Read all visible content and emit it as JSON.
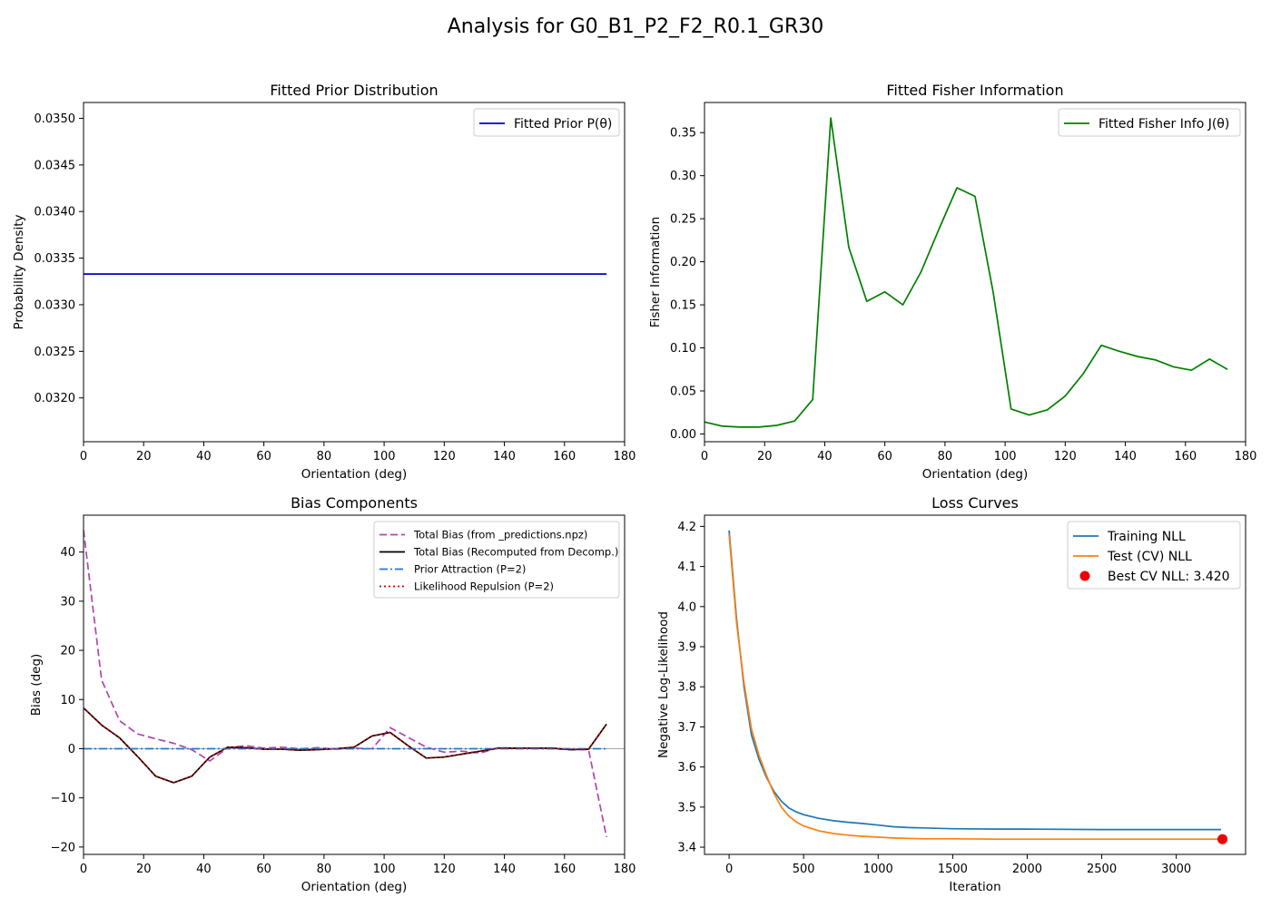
{
  "figure": {
    "title": "Analysis for G0_B1_P2_F2_R0.1_GR30"
  },
  "chart_data": [
    {
      "id": "prior",
      "type": "line",
      "title": "Fitted Prior Distribution",
      "xlabel": "Orientation (deg)",
      "ylabel": "Probability Density",
      "xlim": [
        0,
        180
      ],
      "ylim": [
        0.03153,
        0.03517
      ],
      "xticks": [
        0,
        20,
        40,
        60,
        80,
        100,
        120,
        140,
        160,
        180
      ],
      "yticks": [
        0.032,
        0.0325,
        0.033,
        0.0335,
        0.034,
        0.0345,
        0.035
      ],
      "yticklabels": [
        "0.0320",
        "0.0325",
        "0.0330",
        "0.0335",
        "0.0340",
        "0.0345",
        "0.0350"
      ],
      "grid": false,
      "legend": "top-right",
      "series": [
        {
          "name": "Fitted Prior P(θ)",
          "color": "#0000cc",
          "style": "solid",
          "x": [
            0,
            174
          ],
          "y": [
            0.03333,
            0.03333
          ]
        }
      ]
    },
    {
      "id": "fisher",
      "type": "line",
      "title": "Fitted Fisher Information",
      "xlabel": "Orientation (deg)",
      "ylabel": "Fisher Information",
      "xlim": [
        0,
        180
      ],
      "ylim": [
        -0.009,
        0.385
      ],
      "xticks": [
        0,
        20,
        40,
        60,
        80,
        100,
        120,
        140,
        160,
        180
      ],
      "yticks": [
        0,
        0.05,
        0.1,
        0.15,
        0.2,
        0.25,
        0.3,
        0.35
      ],
      "yticklabels": [
        "0.00",
        "0.05",
        "0.10",
        "0.15",
        "0.20",
        "0.25",
        "0.30",
        "0.35"
      ],
      "grid": false,
      "legend": "top-right",
      "series": [
        {
          "name": "Fitted Fisher Info J(θ)",
          "color": "#008000",
          "style": "solid",
          "x": [
            0,
            6,
            12,
            18,
            24,
            30,
            36,
            42,
            48,
            54,
            60,
            66,
            72,
            78,
            84,
            90,
            96,
            102,
            108,
            114,
            120,
            126,
            132,
            138,
            144,
            150,
            156,
            162,
            168,
            174
          ],
          "y": [
            0.014,
            0.009,
            0.008,
            0.008,
            0.01,
            0.015,
            0.04,
            0.367,
            0.217,
            0.154,
            0.165,
            0.15,
            0.188,
            0.238,
            0.286,
            0.276,
            0.165,
            0.029,
            0.022,
            0.028,
            0.044,
            0.07,
            0.103,
            0.096,
            0.09,
            0.086,
            0.078,
            0.074,
            0.087,
            0.075
          ]
        }
      ]
    },
    {
      "id": "bias",
      "type": "line",
      "title": "Bias Components",
      "xlabel": "Orientation (deg)",
      "ylabel": "Bias (deg)",
      "xlim": [
        0,
        180
      ],
      "ylim": [
        -21.5,
        47.5
      ],
      "xticks": [
        0,
        20,
        40,
        60,
        80,
        100,
        120,
        140,
        160,
        180
      ],
      "yticks": [
        -20,
        -10,
        0,
        10,
        20,
        30,
        40
      ],
      "yticklabels": [
        "−20",
        "−10",
        "0",
        "10",
        "20",
        "30",
        "40"
      ],
      "grid": false,
      "zero_line": true,
      "legend": "top-right",
      "series": [
        {
          "name": "Total Bias (from _predictions.npz)",
          "color": "#b044b0",
          "style": "dashed",
          "x": [
            0,
            6,
            12,
            18,
            24,
            30,
            36,
            42,
            48,
            54,
            60,
            66,
            72,
            78,
            84,
            90,
            96,
            102,
            108,
            114,
            120,
            126,
            132,
            138,
            144,
            150,
            156,
            162,
            168,
            174
          ],
          "y": [
            44.5,
            14.0,
            5.7,
            3.0,
            2.0,
            1.1,
            -0.2,
            -2.5,
            0.2,
            0.6,
            0.1,
            0.3,
            0.0,
            0.2,
            -0.1,
            0.1,
            0.0,
            4.3,
            2.3,
            0.3,
            -0.7,
            -0.5,
            -0.9,
            0.2,
            0.1,
            0.1,
            0.0,
            -0.2,
            -0.2,
            -18.0
          ]
        },
        {
          "name": "Total Bias (Recomputed from Decomp.)",
          "color": "#000000",
          "style": "solid",
          "x": [
            0,
            6,
            12,
            18,
            24,
            30,
            36,
            42,
            48,
            54,
            60,
            66,
            72,
            78,
            84,
            90,
            96,
            102,
            108,
            114,
            120,
            126,
            132,
            138,
            144,
            150,
            156,
            162,
            168,
            174
          ],
          "y": [
            8.3,
            4.8,
            2.2,
            -1.6,
            -5.6,
            -6.9,
            -5.6,
            -1.7,
            0.3,
            0.2,
            -0.1,
            -0.1,
            -0.3,
            -0.2,
            0.0,
            0.3,
            2.6,
            3.3,
            0.6,
            -1.9,
            -1.7,
            -1.1,
            -0.5,
            0.1,
            0.1,
            0.1,
            0.1,
            -0.2,
            -0.1,
            5.0
          ]
        },
        {
          "name": "Prior Attraction (P=2)",
          "color": "#1f77d4",
          "style": "dashdot",
          "x": [
            0,
            174
          ],
          "y": [
            0,
            0
          ]
        },
        {
          "name": "Likelihood Repulsion (P=2)",
          "color": "#cc0000",
          "style": "dotted",
          "x": [
            0,
            6,
            12,
            18,
            24,
            30,
            36,
            42,
            48,
            54,
            60,
            66,
            72,
            78,
            84,
            90,
            96,
            102,
            108,
            114,
            120,
            126,
            132,
            138,
            144,
            150,
            156,
            162,
            168,
            174
          ],
          "y": [
            8.3,
            4.8,
            2.2,
            -1.6,
            -5.6,
            -6.9,
            -5.6,
            -1.7,
            0.3,
            0.2,
            -0.1,
            -0.1,
            -0.3,
            -0.2,
            0.0,
            0.3,
            2.6,
            3.3,
            0.6,
            -1.9,
            -1.7,
            -1.1,
            -0.5,
            0.1,
            0.1,
            0.1,
            0.1,
            -0.2,
            -0.1,
            5.0
          ]
        }
      ]
    },
    {
      "id": "loss",
      "type": "line",
      "title": "Loss Curves",
      "xlabel": "Iteration",
      "ylabel": "Negative Log-Likelihood",
      "xlim": [
        -165,
        3465
      ],
      "ylim": [
        3.382,
        4.228
      ],
      "xticks": [
        0,
        500,
        1000,
        1500,
        2000,
        2500,
        3000
      ],
      "yticks": [
        3.4,
        3.5,
        3.6,
        3.7,
        3.8,
        3.9,
        4.0,
        4.1,
        4.2
      ],
      "yticklabels": [
        "3.4",
        "3.5",
        "3.6",
        "3.7",
        "3.8",
        "3.9",
        "4.0",
        "4.1",
        "4.2"
      ],
      "grid": false,
      "legend": "top-right",
      "series": [
        {
          "name": "Training NLL",
          "color": "#1f77b4",
          "style": "solid",
          "x": [
            0,
            50,
            100,
            150,
            200,
            250,
            300,
            350,
            400,
            450,
            500,
            600,
            700,
            800,
            900,
            1000,
            1100,
            1200,
            1300,
            1500,
            1800,
            2000,
            2500,
            3000,
            3300
          ],
          "y": [
            4.19,
            3.97,
            3.8,
            3.68,
            3.62,
            3.575,
            3.54,
            3.515,
            3.498,
            3.488,
            3.481,
            3.472,
            3.466,
            3.462,
            3.459,
            3.455,
            3.451,
            3.449,
            3.448,
            3.446,
            3.445,
            3.445,
            3.444,
            3.444,
            3.444
          ]
        },
        {
          "name": "Test (CV) NLL",
          "color": "#ff7f0e",
          "style": "solid",
          "x": [
            0,
            50,
            100,
            150,
            200,
            250,
            300,
            350,
            400,
            450,
            500,
            600,
            700,
            800,
            900,
            1000,
            1100,
            1200,
            1300,
            1500,
            1800,
            2000,
            2500,
            3000,
            3300
          ],
          "y": [
            4.18,
            3.96,
            3.81,
            3.695,
            3.63,
            3.58,
            3.535,
            3.5,
            3.478,
            3.463,
            3.453,
            3.441,
            3.434,
            3.43,
            3.427,
            3.425,
            3.423,
            3.422,
            3.421,
            3.421,
            3.42,
            3.42,
            3.42,
            3.42,
            3.42
          ]
        },
        {
          "name": "Best CV NLL: 3.420",
          "color": "#ee0000",
          "style": "marker",
          "x": [
            3310
          ],
          "y": [
            3.42
          ]
        }
      ]
    }
  ]
}
